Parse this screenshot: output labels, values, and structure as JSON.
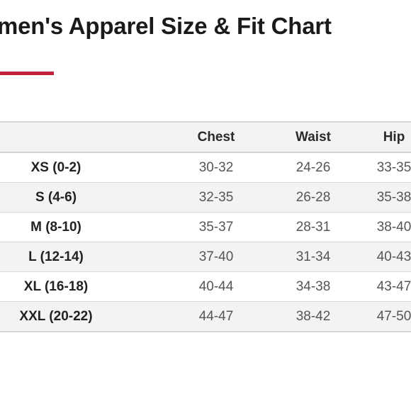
{
  "title": "omen's Apparel Size & Fit Chart",
  "colors": {
    "accent": "#c0203a",
    "row_shade": "#f3f3f3",
    "border": "#d4d4d4"
  },
  "table": {
    "headers": {
      "size": "",
      "chest": "Chest",
      "waist": "Waist",
      "hip": "Hip"
    },
    "rows": [
      {
        "size": "XS (0-2)",
        "chest": "30-32",
        "waist": "24-26",
        "hip": "33-35"
      },
      {
        "size": "S (4-6)",
        "chest": "32-35",
        "waist": "26-28",
        "hip": "35-38"
      },
      {
        "size": "M (8-10)",
        "chest": "35-37",
        "waist": "28-31",
        "hip": "38-40"
      },
      {
        "size": "L (12-14)",
        "chest": "37-40",
        "waist": "31-34",
        "hip": "40-43"
      },
      {
        "size": "XL (16-18)",
        "chest": "40-44",
        "waist": "34-38",
        "hip": "43-47"
      },
      {
        "size": "XXL (20-22)",
        "chest": "44-47",
        "waist": "38-42",
        "hip": "47-50"
      }
    ]
  }
}
